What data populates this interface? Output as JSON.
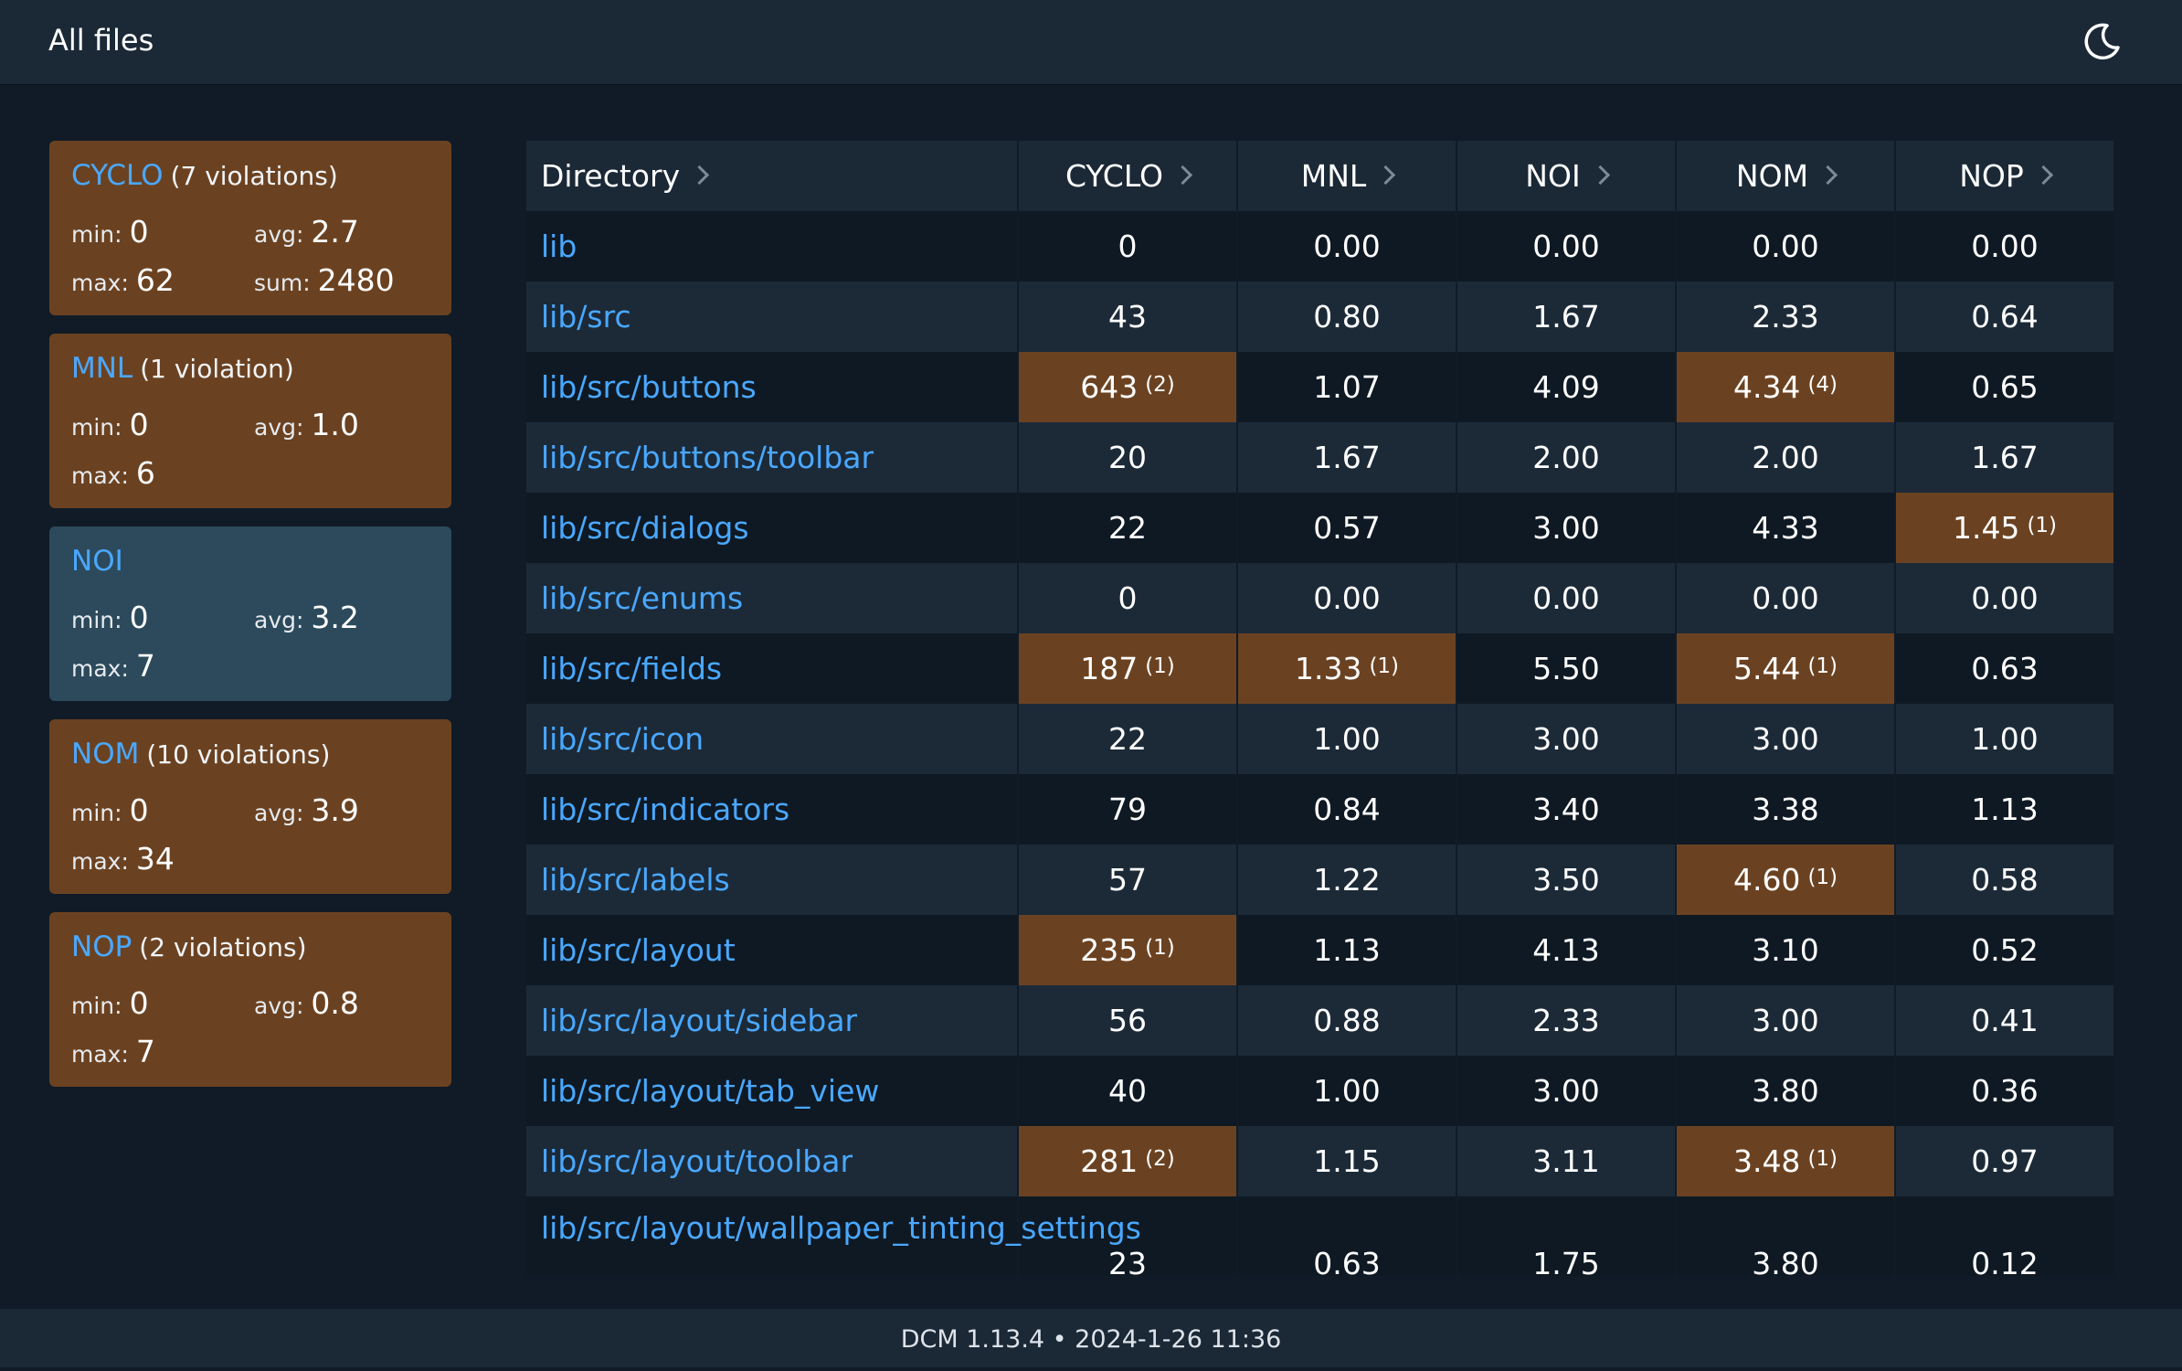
{
  "header": {
    "title": "All files",
    "theme_icon": "moon-icon"
  },
  "cards": [
    {
      "metric": "CYCLO",
      "violations": "(7 violations)",
      "state": "violation",
      "min_label": "min:",
      "min": "0",
      "avg_label": "avg:",
      "avg": "2.7",
      "max_label": "max:",
      "max": "62",
      "sum_label": "sum:",
      "sum": "2480"
    },
    {
      "metric": "MNL",
      "violations": "(1 violation)",
      "state": "violation",
      "min_label": "min:",
      "min": "0",
      "avg_label": "avg:",
      "avg": "1.0",
      "max_label": "max:",
      "max": "6"
    },
    {
      "metric": "NOI",
      "violations": "",
      "state": "ok",
      "min_label": "min:",
      "min": "0",
      "avg_label": "avg:",
      "avg": "3.2",
      "max_label": "max:",
      "max": "7"
    },
    {
      "metric": "NOM",
      "violations": "(10 violations)",
      "state": "violation",
      "min_label": "min:",
      "min": "0",
      "avg_label": "avg:",
      "avg": "3.9",
      "max_label": "max:",
      "max": "34"
    },
    {
      "metric": "NOP",
      "violations": "(2 violations)",
      "state": "violation",
      "min_label": "min:",
      "min": "0",
      "avg_label": "avg:",
      "avg": "0.8",
      "max_label": "max:",
      "max": "7"
    }
  ],
  "table": {
    "columns": [
      "Directory",
      "CYCLO",
      "MNL",
      "NOI",
      "NOM",
      "NOP"
    ],
    "rows": [
      {
        "dir": "lib",
        "cells": [
          {
            "v": "0"
          },
          {
            "v": "0.00"
          },
          {
            "v": "0.00"
          },
          {
            "v": "0.00"
          },
          {
            "v": "0.00"
          }
        ]
      },
      {
        "dir": "lib/src",
        "cells": [
          {
            "v": "43"
          },
          {
            "v": "0.80"
          },
          {
            "v": "1.67"
          },
          {
            "v": "2.33"
          },
          {
            "v": "0.64"
          }
        ]
      },
      {
        "dir": "lib/src/buttons",
        "cells": [
          {
            "v": "643",
            "count": "(2)"
          },
          {
            "v": "1.07"
          },
          {
            "v": "4.09"
          },
          {
            "v": "4.34",
            "count": "(4)"
          },
          {
            "v": "0.65"
          }
        ]
      },
      {
        "dir": "lib/src/buttons/toolbar",
        "cells": [
          {
            "v": "20"
          },
          {
            "v": "1.67"
          },
          {
            "v": "2.00"
          },
          {
            "v": "2.00"
          },
          {
            "v": "1.67"
          }
        ]
      },
      {
        "dir": "lib/src/dialogs",
        "cells": [
          {
            "v": "22"
          },
          {
            "v": "0.57"
          },
          {
            "v": "3.00"
          },
          {
            "v": "4.33"
          },
          {
            "v": "1.45",
            "count": "(1)"
          }
        ]
      },
      {
        "dir": "lib/src/enums",
        "cells": [
          {
            "v": "0"
          },
          {
            "v": "0.00"
          },
          {
            "v": "0.00"
          },
          {
            "v": "0.00"
          },
          {
            "v": "0.00"
          }
        ]
      },
      {
        "dir": "lib/src/fields",
        "cells": [
          {
            "v": "187",
            "count": "(1)"
          },
          {
            "v": "1.33",
            "count": "(1)"
          },
          {
            "v": "5.50"
          },
          {
            "v": "5.44",
            "count": "(1)"
          },
          {
            "v": "0.63"
          }
        ]
      },
      {
        "dir": "lib/src/icon",
        "cells": [
          {
            "v": "22"
          },
          {
            "v": "1.00"
          },
          {
            "v": "3.00"
          },
          {
            "v": "3.00"
          },
          {
            "v": "1.00"
          }
        ]
      },
      {
        "dir": "lib/src/indicators",
        "cells": [
          {
            "v": "79"
          },
          {
            "v": "0.84"
          },
          {
            "v": "3.40"
          },
          {
            "v": "3.38"
          },
          {
            "v": "1.13"
          }
        ]
      },
      {
        "dir": "lib/src/labels",
        "cells": [
          {
            "v": "57"
          },
          {
            "v": "1.22"
          },
          {
            "v": "3.50"
          },
          {
            "v": "4.60",
            "count": "(1)"
          },
          {
            "v": "0.58"
          }
        ]
      },
      {
        "dir": "lib/src/layout",
        "cells": [
          {
            "v": "235",
            "count": "(1)"
          },
          {
            "v": "1.13"
          },
          {
            "v": "4.13"
          },
          {
            "v": "3.10"
          },
          {
            "v": "0.52"
          }
        ]
      },
      {
        "dir": "lib/src/layout/sidebar",
        "cells": [
          {
            "v": "56"
          },
          {
            "v": "0.88"
          },
          {
            "v": "2.33"
          },
          {
            "v": "3.00"
          },
          {
            "v": "0.41"
          }
        ]
      },
      {
        "dir": "lib/src/layout/tab_view",
        "cells": [
          {
            "v": "40"
          },
          {
            "v": "1.00"
          },
          {
            "v": "3.00"
          },
          {
            "v": "3.80"
          },
          {
            "v": "0.36"
          }
        ]
      },
      {
        "dir": "lib/src/layout/toolbar",
        "cells": [
          {
            "v": "281",
            "count": "(2)"
          },
          {
            "v": "1.15"
          },
          {
            "v": "3.11"
          },
          {
            "v": "3.48",
            "count": "(1)"
          },
          {
            "v": "0.97"
          }
        ]
      },
      {
        "dir": "lib/src/layout/wallpaper_tinting_settings",
        "cells": [
          {
            "v": "23"
          },
          {
            "v": "0.63"
          },
          {
            "v": "1.75"
          },
          {
            "v": "3.80"
          },
          {
            "v": "0.12"
          }
        ]
      }
    ]
  },
  "footer": {
    "text": "DCM 1.13.4 • 2024-1-26 11:36"
  },
  "colors": {
    "background": "#101b27",
    "bar": "#1b2836",
    "violation": "#6b4221",
    "ok_card": "#2c4a5c",
    "link": "#4aa8ff"
  }
}
